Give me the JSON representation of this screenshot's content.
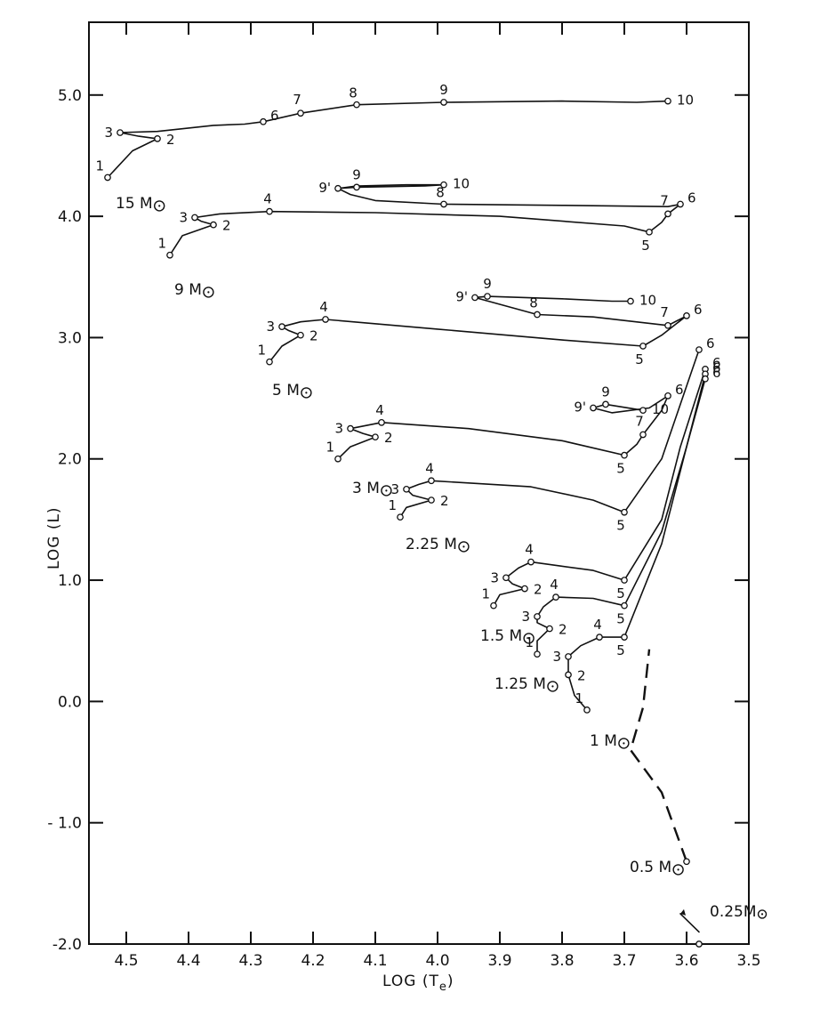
{
  "chart_data": {
    "type": "line",
    "xlabel": "LOG (T",
    "xlabel_sub": "e",
    "xlabel_close": ")",
    "ylabel": "LOG (L)",
    "xlim": [
      4.56,
      3.5
    ],
    "ylim": [
      -2.0,
      5.6
    ],
    "x_ticks": [
      {
        "value": 4.5,
        "label": "4.5"
      },
      {
        "value": 4.4,
        "label": "4.4"
      },
      {
        "value": 4.3,
        "label": "4.3"
      },
      {
        "value": 4.2,
        "label": "4.2"
      },
      {
        "value": 4.1,
        "label": "4.1"
      },
      {
        "value": 4.0,
        "label": "4.0"
      },
      {
        "value": 3.9,
        "label": "3.9"
      },
      {
        "value": 3.8,
        "label": "3.8"
      },
      {
        "value": 3.7,
        "label": "3.7"
      },
      {
        "value": 3.6,
        "label": "3.6"
      },
      {
        "value": 3.5,
        "label": "3.5"
      }
    ],
    "y_ticks": [
      {
        "value": 5.0,
        "label": "5.0"
      },
      {
        "value": 4.0,
        "label": "4.0"
      },
      {
        "value": 3.0,
        "label": "3.0"
      },
      {
        "value": 2.0,
        "label": "2.0"
      },
      {
        "value": 1.0,
        "label": "1.0"
      },
      {
        "value": 0.0,
        "label": "0.0"
      },
      {
        "value": -1.0,
        "label": "- 1.0"
      },
      {
        "value": -2.0,
        "label": "-2.0"
      }
    ],
    "grid": false,
    "series": [
      {
        "name": "15 M⊙",
        "mass_value": "15 M",
        "style": "solid",
        "path": [
          [
            4.53,
            4.32
          ],
          [
            4.49,
            4.54
          ],
          [
            4.45,
            4.64
          ],
          [
            4.48,
            4.66
          ],
          [
            4.51,
            4.69
          ],
          [
            4.45,
            4.7
          ],
          [
            4.36,
            4.75
          ],
          [
            4.31,
            4.76
          ],
          [
            4.28,
            4.78
          ],
          [
            4.22,
            4.85
          ],
          [
            4.13,
            4.92
          ],
          [
            3.99,
            4.94
          ],
          [
            3.8,
            4.95
          ],
          [
            3.68,
            4.94
          ],
          [
            3.63,
            4.95
          ]
        ],
        "points": [
          {
            "label": "1",
            "x": 4.53,
            "y": 4.32
          },
          {
            "label": "2",
            "x": 4.45,
            "y": 4.64
          },
          {
            "label": "3",
            "x": 4.51,
            "y": 4.69
          },
          {
            "label": "6",
            "x": 4.28,
            "y": 4.78
          },
          {
            "label": "7",
            "x": 4.22,
            "y": 4.85
          },
          {
            "label": "8",
            "x": 4.13,
            "y": 4.92
          },
          {
            "label": "9",
            "x": 3.99,
            "y": 4.94
          },
          {
            "label": "10",
            "x": 3.63,
            "y": 4.95
          }
        ]
      },
      {
        "name": "9 M⊙",
        "mass_value": "9 M",
        "style": "solid",
        "path": [
          [
            4.43,
            3.68
          ],
          [
            4.41,
            3.84
          ],
          [
            4.36,
            3.93
          ],
          [
            4.38,
            3.96
          ],
          [
            4.39,
            3.99
          ],
          [
            4.35,
            4.02
          ],
          [
            4.27,
            4.04
          ],
          [
            4.1,
            4.03
          ],
          [
            3.9,
            4.0
          ],
          [
            3.7,
            3.92
          ],
          [
            3.66,
            3.87
          ],
          [
            3.64,
            3.95
          ],
          [
            3.63,
            4.02
          ],
          [
            3.61,
            4.1
          ],
          [
            3.63,
            4.08
          ],
          [
            3.8,
            4.09
          ],
          [
            3.99,
            4.1
          ],
          [
            4.1,
            4.13
          ],
          [
            4.14,
            4.18
          ],
          [
            4.16,
            4.23
          ],
          [
            4.13,
            4.24
          ],
          [
            4.02,
            4.25
          ],
          [
            3.99,
            4.26
          ],
          [
            4.05,
            4.26
          ],
          [
            4.13,
            4.25
          ],
          [
            4.16,
            4.23
          ]
        ],
        "points": [
          {
            "label": "1",
            "x": 4.43,
            "y": 3.68
          },
          {
            "label": "2",
            "x": 4.36,
            "y": 3.93
          },
          {
            "label": "3",
            "x": 4.39,
            "y": 3.99
          },
          {
            "label": "4",
            "x": 4.27,
            "y": 4.04
          },
          {
            "label": "5",
            "x": 3.66,
            "y": 3.87
          },
          {
            "label": "6",
            "x": 3.61,
            "y": 4.1
          },
          {
            "label": "7",
            "x": 3.63,
            "y": 4.02
          },
          {
            "label": "8",
            "x": 3.99,
            "y": 4.1
          },
          {
            "label": "9",
            "x": 4.13,
            "y": 4.24
          },
          {
            "label": "9'",
            "x": 4.16,
            "y": 4.23
          },
          {
            "label": "10",
            "x": 3.99,
            "y": 4.26
          }
        ]
      },
      {
        "name": "5 M⊙",
        "mass_value": "5 M",
        "style": "solid",
        "path": [
          [
            4.27,
            2.8
          ],
          [
            4.25,
            2.93
          ],
          [
            4.22,
            3.02
          ],
          [
            4.24,
            3.06
          ],
          [
            4.25,
            3.09
          ],
          [
            4.22,
            3.13
          ],
          [
            4.18,
            3.15
          ],
          [
            4.0,
            3.07
          ],
          [
            3.8,
            2.98
          ],
          [
            3.67,
            2.93
          ],
          [
            3.64,
            3.02
          ],
          [
            3.62,
            3.1
          ],
          [
            3.6,
            3.18
          ],
          [
            3.63,
            3.1
          ],
          [
            3.75,
            3.17
          ],
          [
            3.84,
            3.19
          ],
          [
            3.94,
            3.33
          ],
          [
            3.92,
            3.34
          ],
          [
            3.8,
            3.32
          ],
          [
            3.72,
            3.3
          ],
          [
            3.69,
            3.3
          ]
        ],
        "points": [
          {
            "label": "1",
            "x": 4.27,
            "y": 2.8
          },
          {
            "label": "2",
            "x": 4.22,
            "y": 3.02
          },
          {
            "label": "3",
            "x": 4.25,
            "y": 3.09
          },
          {
            "label": "4",
            "x": 4.18,
            "y": 3.15
          },
          {
            "label": "5",
            "x": 3.67,
            "y": 2.93
          },
          {
            "label": "6",
            "x": 3.6,
            "y": 3.18
          },
          {
            "label": "7",
            "x": 3.63,
            "y": 3.1
          },
          {
            "label": "8",
            "x": 3.84,
            "y": 3.19
          },
          {
            "label": "9",
            "x": 3.92,
            "y": 3.34
          },
          {
            "label": "9'",
            "x": 3.94,
            "y": 3.33
          },
          {
            "label": "10",
            "x": 3.69,
            "y": 3.3
          }
        ]
      },
      {
        "name": "3 M⊙",
        "mass_value": "3 M",
        "style": "solid",
        "path": [
          [
            4.16,
            2.0
          ],
          [
            4.14,
            2.1
          ],
          [
            4.1,
            2.18
          ],
          [
            4.12,
            2.21
          ],
          [
            4.14,
            2.25
          ],
          [
            4.09,
            2.3
          ],
          [
            3.95,
            2.25
          ],
          [
            3.8,
            2.15
          ],
          [
            3.7,
            2.03
          ],
          [
            3.68,
            2.12
          ],
          [
            3.67,
            2.2
          ],
          [
            3.64,
            2.4
          ],
          [
            3.63,
            2.52
          ],
          [
            3.66,
            2.42
          ],
          [
            3.72,
            2.38
          ],
          [
            3.75,
            2.42
          ],
          [
            3.73,
            2.45
          ],
          [
            3.67,
            2.4
          ]
        ],
        "points": [
          {
            "label": "1",
            "x": 4.16,
            "y": 2.0
          },
          {
            "label": "2",
            "x": 4.1,
            "y": 2.18
          },
          {
            "label": "3",
            "x": 4.14,
            "y": 2.25
          },
          {
            "label": "4",
            "x": 4.09,
            "y": 2.3
          },
          {
            "label": "5",
            "x": 3.7,
            "y": 2.03
          },
          {
            "label": "6",
            "x": 3.63,
            "y": 2.52
          },
          {
            "label": "7",
            "x": 3.67,
            "y": 2.2
          },
          {
            "label": "9",
            "x": 3.73,
            "y": 2.45
          },
          {
            "label": "9'",
            "x": 3.75,
            "y": 2.42
          },
          {
            "label": "10",
            "x": 3.67,
            "y": 2.4
          }
        ]
      },
      {
        "name": "2.25 M⊙",
        "mass_value": "2.25 M",
        "style": "solid",
        "path": [
          [
            4.06,
            1.52
          ],
          [
            4.05,
            1.6
          ],
          [
            4.01,
            1.66
          ],
          [
            4.04,
            1.7
          ],
          [
            4.05,
            1.75
          ],
          [
            4.03,
            1.79
          ],
          [
            4.01,
            1.82
          ],
          [
            3.85,
            1.77
          ],
          [
            3.75,
            1.66
          ],
          [
            3.7,
            1.56
          ],
          [
            3.64,
            2.0
          ],
          [
            3.6,
            2.6
          ],
          [
            3.58,
            2.9
          ]
        ],
        "points": [
          {
            "label": "1",
            "x": 4.06,
            "y": 1.52
          },
          {
            "label": "2",
            "x": 4.01,
            "y": 1.66
          },
          {
            "label": "3",
            "x": 4.05,
            "y": 1.75
          },
          {
            "label": "4",
            "x": 4.01,
            "y": 1.82
          },
          {
            "label": "5",
            "x": 3.7,
            "y": 1.56
          },
          {
            "label": "6",
            "x": 3.58,
            "y": 2.9
          }
        ]
      },
      {
        "name": "1.5 M⊙",
        "mass_value": "1.5 M",
        "style": "solid",
        "path": [
          [
            3.91,
            0.79
          ],
          [
            3.9,
            0.88
          ],
          [
            3.86,
            0.93
          ],
          [
            3.88,
            0.97
          ],
          [
            3.89,
            1.02
          ],
          [
            3.87,
            1.1
          ],
          [
            3.85,
            1.15
          ],
          [
            3.75,
            1.08
          ],
          [
            3.7,
            1.0
          ],
          [
            3.64,
            1.5
          ],
          [
            3.61,
            2.1
          ],
          [
            3.57,
            2.74
          ]
        ],
        "points": [
          {
            "label": "1",
            "x": 3.91,
            "y": 0.79
          },
          {
            "label": "2",
            "x": 3.86,
            "y": 0.93
          },
          {
            "label": "3",
            "x": 3.89,
            "y": 1.02
          },
          {
            "label": "4",
            "x": 3.85,
            "y": 1.15
          },
          {
            "label": "5",
            "x": 3.7,
            "y": 1.0
          },
          {
            "label": "6",
            "x": 3.57,
            "y": 2.74
          }
        ]
      },
      {
        "name": "1.25 M⊙",
        "mass_value": "1.25 M",
        "style": "solid",
        "path": [
          [
            3.84,
            0.39
          ],
          [
            3.84,
            0.5
          ],
          [
            3.82,
            0.6
          ],
          [
            3.84,
            0.65
          ],
          [
            3.84,
            0.7
          ],
          [
            3.83,
            0.78
          ],
          [
            3.81,
            0.86
          ],
          [
            3.75,
            0.85
          ],
          [
            3.7,
            0.79
          ],
          [
            3.64,
            1.4
          ],
          [
            3.6,
            2.1
          ],
          [
            3.57,
            2.7
          ]
        ],
        "points": [
          {
            "label": "1",
            "x": 3.84,
            "y": 0.39
          },
          {
            "label": "2",
            "x": 3.82,
            "y": 0.6
          },
          {
            "label": "3",
            "x": 3.84,
            "y": 0.7
          },
          {
            "label": "4",
            "x": 3.81,
            "y": 0.86
          },
          {
            "label": "5",
            "x": 3.7,
            "y": 0.79
          },
          {
            "label": "6",
            "x": 3.57,
            "y": 2.7
          }
        ]
      },
      {
        "name": "1 M⊙",
        "mass_value": "1 M",
        "style": "solid",
        "path": [
          [
            3.76,
            -0.07
          ],
          [
            3.78,
            0.05
          ],
          [
            3.79,
            0.22
          ],
          [
            3.79,
            0.3
          ],
          [
            3.79,
            0.37
          ],
          [
            3.77,
            0.46
          ],
          [
            3.74,
            0.53
          ],
          [
            3.7,
            0.53
          ],
          [
            3.64,
            1.3
          ],
          [
            3.6,
            2.1
          ],
          [
            3.57,
            2.66
          ]
        ],
        "points": [
          {
            "label": "1",
            "x": 3.76,
            "y": -0.07
          },
          {
            "label": "2",
            "x": 3.79,
            "y": 0.22
          },
          {
            "label": "3",
            "x": 3.79,
            "y": 0.37
          },
          {
            "label": "4",
            "x": 3.74,
            "y": 0.53
          },
          {
            "label": "5",
            "x": 3.7,
            "y": 0.53
          },
          {
            "label": "6",
            "x": 3.57,
            "y": 2.66
          }
        ]
      },
      {
        "name": "0.5 M⊙",
        "mass_value": "0.5 M",
        "style": "dashed",
        "path": [
          [
            3.6,
            -1.32
          ],
          [
            3.64,
            -0.75
          ],
          [
            3.69,
            -0.4
          ],
          [
            3.67,
            -0.05
          ],
          [
            3.66,
            0.43
          ]
        ],
        "points": [
          {
            "label": "",
            "x": 3.6,
            "y": -1.32
          }
        ]
      },
      {
        "name": "0.25 M⊙",
        "mass_value": "0.25M",
        "style": "arrow",
        "path": [
          [
            3.58,
            -1.9
          ],
          [
            3.61,
            -1.75
          ]
        ],
        "points": [
          {
            "label": "",
            "x": 3.58,
            "y": -2.0
          }
        ]
      }
    ],
    "mass_labels": [
      {
        "series": "15 M⊙",
        "text": "15 M"
      },
      {
        "series": "9 M⊙",
        "text": "9 M"
      },
      {
        "series": "5 M⊙",
        "text": "5 M"
      },
      {
        "series": "3 M⊙",
        "text": "3 M"
      },
      {
        "series": "2.25 M⊙",
        "text": "2.25 M"
      },
      {
        "series": "1.5 M⊙",
        "text": "1.5 M"
      },
      {
        "series": "1.25 M⊙",
        "text": "1.25 M"
      },
      {
        "series": "1 M⊙",
        "text": "1 M"
      },
      {
        "series": "0.5 M⊙",
        "text": "0.5 M"
      },
      {
        "series": "0.25 M⊙",
        "text": "0.25M"
      }
    ]
  }
}
